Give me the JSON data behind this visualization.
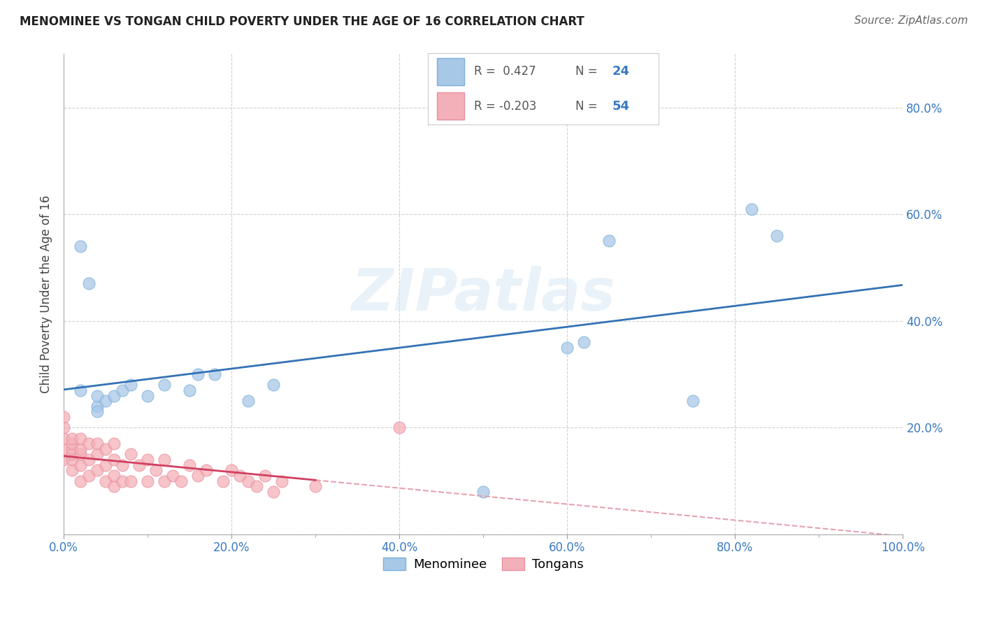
{
  "title": "MENOMINEE VS TONGAN CHILD POVERTY UNDER THE AGE OF 16 CORRELATION CHART",
  "source": "Source: ZipAtlas.com",
  "ylabel": "Child Poverty Under the Age of 16",
  "xlim": [
    0.0,
    1.0
  ],
  "ylim": [
    0.0,
    0.9
  ],
  "xticks": [
    0.0,
    0.2,
    0.4,
    0.6,
    0.8,
    1.0
  ],
  "yticks": [
    0.0,
    0.2,
    0.4,
    0.6,
    0.8
  ],
  "right_ytick_labels": [
    "20.0%",
    "40.0%",
    "60.0%",
    "80.0%"
  ],
  "right_yticks": [
    0.2,
    0.4,
    0.6,
    0.8
  ],
  "xtick_labels": [
    "0.0%",
    "20.0%",
    "40.0%",
    "60.0%",
    "80.0%",
    "100.0%"
  ],
  "menominee_R": "0.427",
  "menominee_N": "24",
  "tongan_R": "-0.203",
  "tongan_N": "54",
  "menominee_color": "#a8c8e8",
  "menominee_edge": "#7ab0d8",
  "tongan_color": "#f4b0b8",
  "tongan_edge": "#e890a0",
  "trend_menominee_color": "#3472b5",
  "trend_tongan_solid_color": "#d04060",
  "trend_tongan_dashed_color": "#e8a0b0",
  "watermark": "ZIPatlas",
  "menominee_x": [
    0.02,
    0.03,
    0.04,
    0.04,
    0.04,
    0.05,
    0.06,
    0.07,
    0.08,
    0.1,
    0.12,
    0.15,
    0.16,
    0.18,
    0.22,
    0.25,
    0.5,
    0.6,
    0.62,
    0.65,
    0.75,
    0.82,
    0.85,
    0.02
  ],
  "menominee_y": [
    0.54,
    0.47,
    0.24,
    0.23,
    0.26,
    0.25,
    0.26,
    0.27,
    0.28,
    0.26,
    0.28,
    0.27,
    0.3,
    0.3,
    0.25,
    0.28,
    0.08,
    0.35,
    0.36,
    0.55,
    0.25,
    0.61,
    0.56,
    0.27
  ],
  "tongan_x": [
    0.0,
    0.0,
    0.0,
    0.0,
    0.0,
    0.01,
    0.01,
    0.01,
    0.01,
    0.01,
    0.01,
    0.02,
    0.02,
    0.02,
    0.02,
    0.02,
    0.03,
    0.03,
    0.03,
    0.04,
    0.04,
    0.04,
    0.05,
    0.05,
    0.05,
    0.06,
    0.06,
    0.06,
    0.06,
    0.07,
    0.07,
    0.08,
    0.08,
    0.09,
    0.1,
    0.1,
    0.11,
    0.12,
    0.12,
    0.13,
    0.14,
    0.15,
    0.16,
    0.17,
    0.19,
    0.2,
    0.21,
    0.22,
    0.23,
    0.24,
    0.25,
    0.26,
    0.3,
    0.4
  ],
  "tongan_y": [
    0.14,
    0.16,
    0.18,
    0.2,
    0.22,
    0.12,
    0.14,
    0.15,
    0.16,
    0.17,
    0.18,
    0.1,
    0.13,
    0.15,
    0.16,
    0.18,
    0.11,
    0.14,
    0.17,
    0.12,
    0.15,
    0.17,
    0.1,
    0.13,
    0.16,
    0.09,
    0.11,
    0.14,
    0.17,
    0.1,
    0.13,
    0.1,
    0.15,
    0.13,
    0.1,
    0.14,
    0.12,
    0.1,
    0.14,
    0.11,
    0.1,
    0.13,
    0.11,
    0.12,
    0.1,
    0.12,
    0.11,
    0.1,
    0.09,
    0.11,
    0.08,
    0.1,
    0.09,
    0.2
  ],
  "background_color": "#ffffff",
  "grid_color": "#cccccc"
}
